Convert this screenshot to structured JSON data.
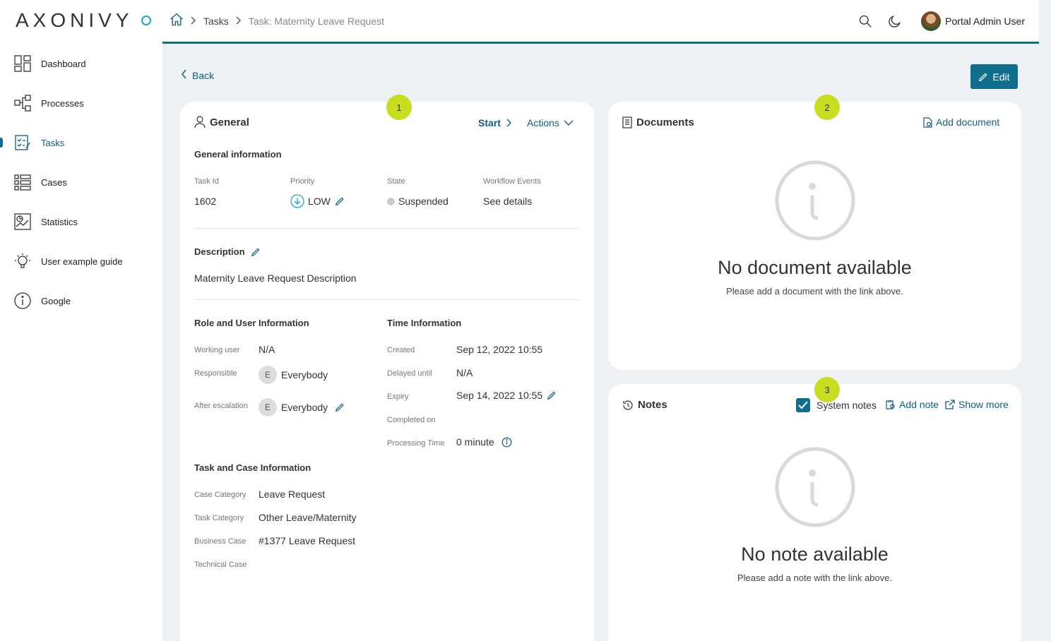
{
  "logo": {
    "text": "AXONIVY"
  },
  "sidebar": {
    "items": [
      {
        "label": "Dashboard",
        "icon": "dashboard-icon"
      },
      {
        "label": "Processes",
        "icon": "processes-icon"
      },
      {
        "label": "Tasks",
        "icon": "tasks-icon",
        "active": true
      },
      {
        "label": "Cases",
        "icon": "cases-icon"
      },
      {
        "label": "Statistics",
        "icon": "statistics-icon"
      },
      {
        "label": "User example guide",
        "icon": "lightbulb-icon"
      },
      {
        "label": "Google",
        "icon": "info-icon"
      }
    ]
  },
  "header": {
    "breadcrumb": {
      "tasks": "Tasks",
      "current": "Task: Maternity Leave Request"
    },
    "user_name": "Portal Admin User"
  },
  "actions": {
    "back": "Back",
    "edit": "Edit"
  },
  "general": {
    "badge": "1",
    "title": "General",
    "start": "Start",
    "actions": "Actions",
    "info_title": "General information",
    "task_id_label": "Task Id",
    "task_id": "1602",
    "priority_label": "Priority",
    "priority": "LOW",
    "state_label": "State",
    "state": "Suspended",
    "workflow_label": "Workflow Events",
    "workflow_link": "See details",
    "description_title": "Description",
    "description": "Maternity Leave Request Description",
    "role_title": "Role and User Information",
    "working_user_label": "Working user",
    "working_user": "N/A",
    "responsible_label": "Responsible",
    "responsible_initial": "E",
    "responsible": "Everybody",
    "after_escalation_label": "After escalation",
    "after_escalation_initial": "E",
    "after_escalation": "Everybody",
    "time_title": "Time Information",
    "created_label": "Created",
    "created": "Sep 12, 2022 10:55",
    "delayed_label": "Delayed until",
    "delayed": "N/A",
    "expiry_label": "Expiry",
    "expiry": "Sep 14, 2022 10:55",
    "completed_label": "Completed on",
    "processing_label": "Processing Time",
    "processing": "0 minute",
    "taskcase_title": "Task and Case Information",
    "case_category_label": "Case Category",
    "case_category": "Leave Request",
    "task_category_label": "Task Category",
    "task_category": "Other Leave/Maternity",
    "business_case_label": "Business Case",
    "business_case": "#1377 Leave Request",
    "technical_case_label": "Technical Case"
  },
  "documents": {
    "badge": "2",
    "title": "Documents",
    "add": "Add document",
    "empty_title": "No document available",
    "empty_sub": "Please add a document with the link above."
  },
  "notes": {
    "badge": "3",
    "title": "Notes",
    "system_notes": "System notes",
    "system_notes_checked": true,
    "add": "Add note",
    "show_more": "Show more",
    "empty_title": "No note available",
    "empty_sub": "Please add a note with the link above."
  },
  "colors": {
    "accent": "#0f6e8e",
    "badge": "#c6de1e",
    "background": "#eef1f4"
  }
}
